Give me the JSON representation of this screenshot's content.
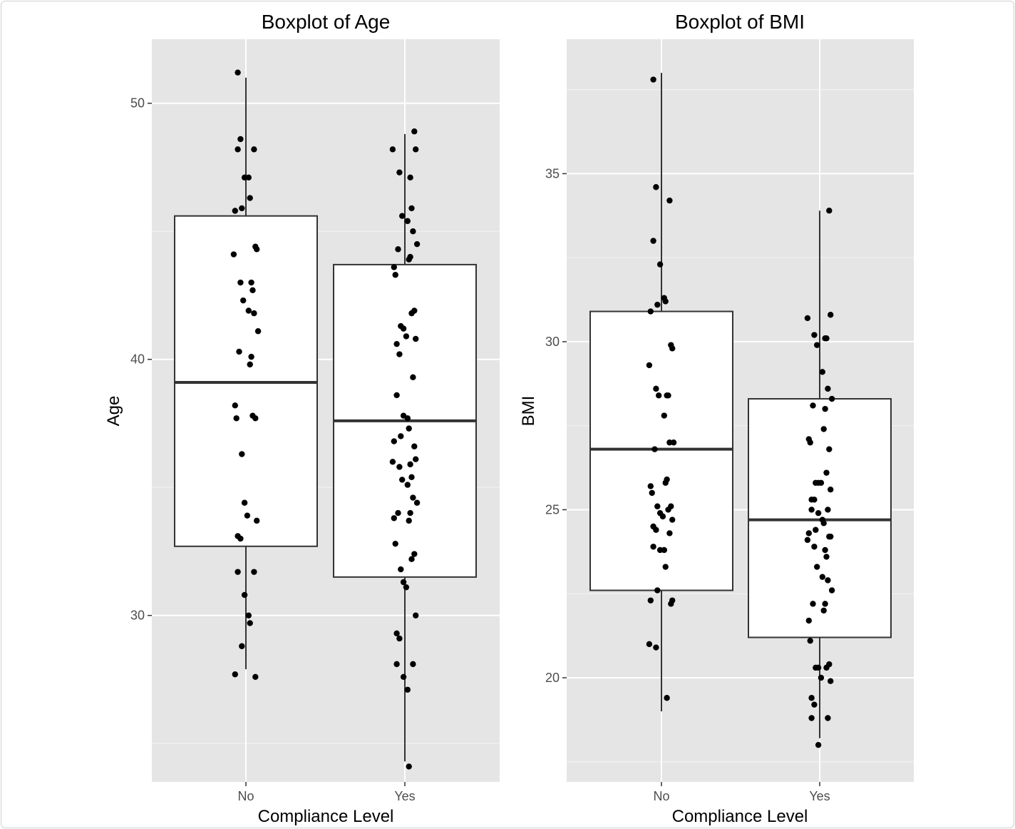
{
  "chart_data": [
    {
      "type": "boxplot",
      "title": "Boxplot of Age",
      "xlabel": "Compliance Level",
      "ylabel": "Age",
      "categories": [
        "No",
        "Yes"
      ],
      "ylim": [
        23.5,
        52.5
      ],
      "yticks": [
        30,
        40,
        50
      ],
      "boxes": [
        {
          "category": "No",
          "whisker_low": 27.9,
          "q1": 32.7,
          "median": 39.1,
          "q3": 45.6,
          "whisker_high": 51.0
        },
        {
          "category": "Yes",
          "whisker_low": 24.3,
          "q1": 31.5,
          "median": 37.6,
          "q3": 43.7,
          "whisker_high": 48.8
        }
      ],
      "points": [
        {
          "category": "No",
          "values": [
            51.2,
            48.6,
            48.2,
            48.2,
            47.1,
            47.1,
            46.3,
            45.9,
            45.8,
            44.4,
            44.3,
            44.1,
            43.0,
            43.0,
            42.7,
            42.3,
            41.9,
            41.8,
            41.1,
            40.3,
            40.1,
            39.8,
            38.2,
            37.7,
            37.7,
            37.8,
            36.3,
            34.4,
            33.9,
            33.7,
            33.1,
            33.0,
            31.7,
            31.7,
            30.8,
            30.0,
            29.7,
            28.8,
            27.7,
            27.6
          ]
        },
        {
          "category": "Yes",
          "values": [
            48.9,
            48.2,
            48.2,
            47.3,
            47.1,
            45.9,
            45.6,
            45.4,
            45.0,
            44.5,
            44.3,
            44.0,
            43.9,
            43.6,
            43.3,
            41.9,
            41.8,
            41.3,
            41.2,
            40.9,
            40.8,
            40.6,
            40.2,
            39.3,
            38.6,
            37.8,
            37.7,
            37.3,
            37.0,
            36.8,
            36.6,
            36.1,
            36.0,
            35.8,
            35.9,
            35.4,
            35.3,
            35.1,
            34.6,
            34.4,
            34.0,
            34.0,
            33.7,
            33.8,
            32.8,
            32.4,
            32.2,
            31.8,
            31.3,
            31.1,
            30.0,
            29.3,
            29.1,
            28.1,
            28.1,
            27.6,
            27.1,
            24.1
          ]
        }
      ]
    },
    {
      "type": "boxplot",
      "title": "Boxplot of BMI",
      "xlabel": "Compliance Level",
      "ylabel": "BMI",
      "categories": [
        "No",
        "Yes"
      ],
      "ylim": [
        16.9,
        39.0
      ],
      "yticks": [
        20,
        25,
        30,
        35
      ],
      "boxes": [
        {
          "category": "No",
          "whisker_low": 19.0,
          "q1": 22.6,
          "median": 26.8,
          "q3": 30.9,
          "whisker_high": 38.0
        },
        {
          "category": "Yes",
          "whisker_low": 18.2,
          "q1": 21.2,
          "median": 24.7,
          "q3": 28.3,
          "whisker_high": 33.9
        }
      ],
      "points": [
        {
          "category": "No",
          "values": [
            37.8,
            34.6,
            34.2,
            33.0,
            32.3,
            31.3,
            31.2,
            31.1,
            30.9,
            29.9,
            29.8,
            29.3,
            28.6,
            28.4,
            28.4,
            28.4,
            27.8,
            27.0,
            27.0,
            26.8,
            25.9,
            25.8,
            25.7,
            25.5,
            25.1,
            25.0,
            25.1,
            24.9,
            24.8,
            24.7,
            24.5,
            24.4,
            24.3,
            23.9,
            23.8,
            23.8,
            23.3,
            22.6,
            22.3,
            22.2,
            22.3,
            21.0,
            20.9,
            19.4
          ]
        },
        {
          "category": "Yes",
          "values": [
            33.9,
            30.8,
            30.7,
            30.2,
            30.1,
            30.1,
            29.9,
            29.1,
            28.6,
            28.3,
            28.1,
            28.0,
            27.4,
            27.1,
            27.0,
            26.8,
            26.1,
            25.8,
            25.8,
            25.8,
            25.6,
            25.3,
            25.3,
            25.0,
            25.0,
            24.9,
            24.7,
            24.6,
            24.4,
            24.3,
            24.2,
            24.2,
            24.1,
            23.9,
            23.8,
            23.6,
            23.3,
            23.0,
            22.9,
            22.6,
            22.2,
            22.2,
            22.0,
            21.7,
            21.1,
            20.4,
            20.3,
            20.3,
            20.3,
            20.0,
            19.9,
            19.4,
            19.2,
            18.8,
            18.8,
            18.0
          ]
        }
      ]
    }
  ]
}
